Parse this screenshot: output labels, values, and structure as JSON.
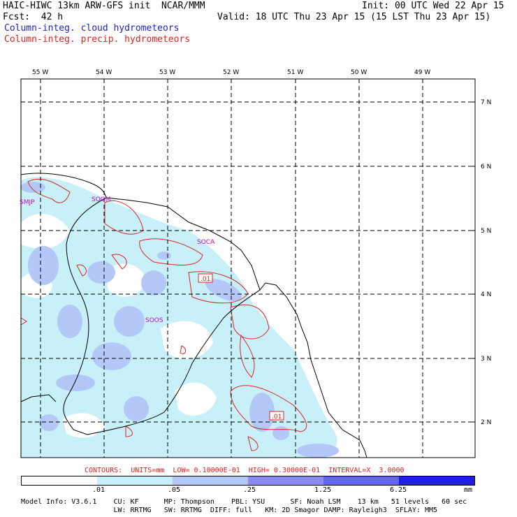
{
  "header": {
    "title": "HAIC-HIWC 13km ARW-GFS init  NCAR/MMM",
    "init": "Init: 00 UTC Wed 22 Apr 15",
    "fcst": "Fcst:  42 h",
    "valid": "Valid: 18 UTC Thu 23 Apr 15 (15 LST Thu 23 Apr 15)",
    "field1": "Column-integ. cloud hydrometeors",
    "field2": "Column-integ. precip. hydrometeors"
  },
  "colors": {
    "field1": "#2222cc",
    "field2": "#dd2222",
    "contour": "#dd2222",
    "station": "#cc00cc",
    "coast": "#000000"
  },
  "map": {
    "lon_labels": [
      "55 W",
      "54 W",
      "53 W",
      "52 W",
      "51 W",
      "50 W",
      "49 W"
    ],
    "lat_labels": [
      "7 N",
      "6 N",
      "5 N",
      "4 N",
      "3 N",
      "2 N"
    ],
    "stations": [
      "SMJP",
      "SOGM",
      "SOCA",
      "SOOS"
    ],
    "contour_labels": [
      ".01",
      ".01"
    ]
  },
  "footer": {
    "contours": "CONTOURS:  UNITS=mm  LOW= 0.10000E-01  HIGH= 0.30000E-01  INTERVAL=X  3.0000",
    "colorbar_labels": [
      ".01",
      ".05",
      ".25",
      "1.25",
      "6.25"
    ],
    "colorbar_unit": "mm",
    "colorbar_colors": [
      "#ffffff",
      "#c8f0f8",
      "#b4c8f8",
      "#8c8cf0",
      "#6464f0",
      "#1e1ee6"
    ],
    "model_line1": "Model Info: V3.6.1    CU: KF      MP: Thompson    PBL: YSU      SF: Noah LSM    13 km   51 levels   60 sec",
    "model_line2": "                      LW: RRTMG   SW: RRTMG  DIFF: full   KM: 2D Smagor DAMP: Rayleigh3  SFLAY: MM5"
  }
}
